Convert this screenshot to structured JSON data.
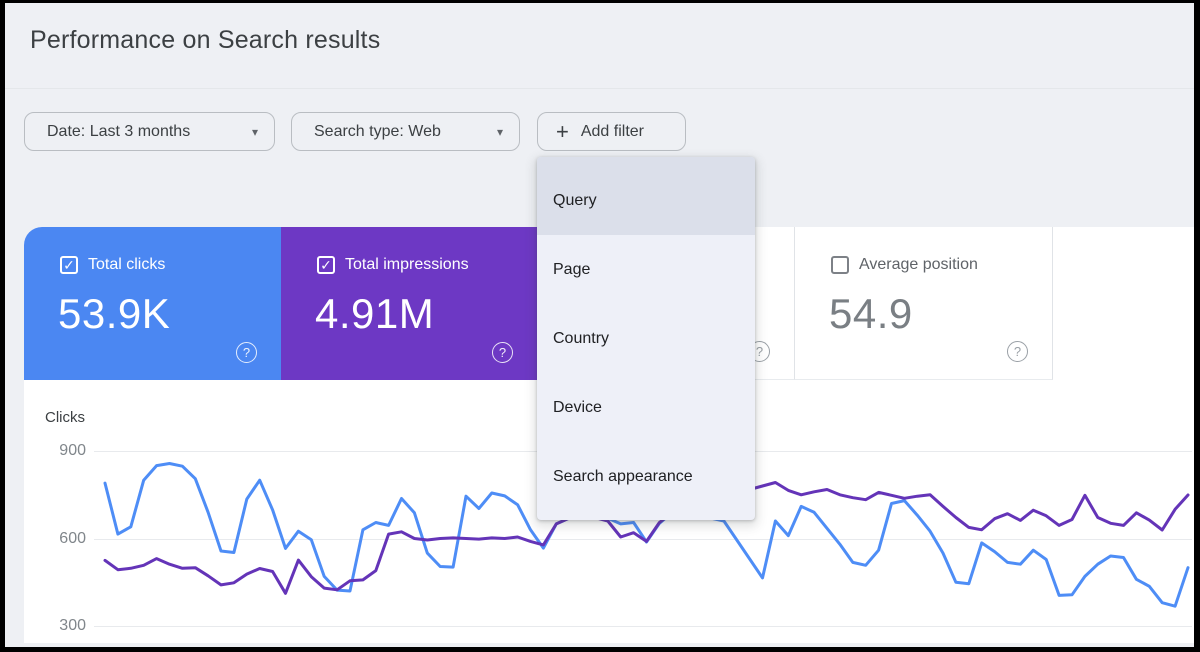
{
  "header": {
    "title": "Performance on Search results"
  },
  "filters": {
    "date": {
      "label": "Date: Last 3 months"
    },
    "search_type": {
      "label": "Search type: Web"
    },
    "add_filter": {
      "label": "Add filter"
    }
  },
  "icons": {
    "dropdown_arrow": "▾",
    "plus": "+",
    "help": "?",
    "checkbox_checked": "✓"
  },
  "add_filter_menu": {
    "items": [
      {
        "label": "Query",
        "selected": true
      },
      {
        "label": "Page",
        "selected": false
      },
      {
        "label": "Country",
        "selected": false
      },
      {
        "label": "Device",
        "selected": false
      },
      {
        "label": "Search appearance",
        "selected": false
      }
    ]
  },
  "metric_tiles": [
    {
      "id": "total-clicks",
      "label": "Total clicks",
      "value": "53.9K",
      "checked": true,
      "bg": "#4b87f2",
      "text_color": "#ffffff",
      "obscured": false
    },
    {
      "id": "total-impressions",
      "label": "Total impressions",
      "value": "4.91M",
      "checked": true,
      "bg": "#6d38c4",
      "text_color": "#ffffff",
      "obscured": false
    },
    {
      "id": "hidden-tile",
      "label": "",
      "value": "",
      "checked": false,
      "bg": "#ffffff",
      "text_color": "#5f6368",
      "obscured": true
    },
    {
      "id": "average-position",
      "label": "Average position",
      "value": "54.9",
      "checked": false,
      "bg": "#ffffff",
      "text_color": "#5f6368",
      "value_color": "#7a7f84",
      "obscured": false
    }
  ],
  "chart_data": {
    "type": "line",
    "ylabel": "Clicks",
    "y_ticks": [
      900,
      600,
      300
    ],
    "ylim": [
      300,
      900
    ],
    "x_unit": "daily points over last 3 months",
    "grid": "horizontal",
    "legend": "none (series colors match Total clicks / Total impressions tiles)",
    "series": [
      {
        "name": "Total clicks",
        "color": "#4e8df6",
        "values": [
          790,
          615,
          640,
          800,
          850,
          857,
          848,
          805,
          690,
          557,
          552,
          735,
          800,
          698,
          566,
          625,
          596,
          470,
          423,
          420,
          630,
          655,
          645,
          737,
          688,
          550,
          504,
          502,
          745,
          703,
          756,
          746,
          716,
          630,
          567,
          650,
          670,
          690,
          685,
          670,
          650,
          655,
          588,
          652,
          690,
          695,
          685,
          670,
          660,
          595,
          530,
          465,
          660,
          610,
          710,
          690,
          635,
          580,
          518,
          508,
          560,
          720,
          730,
          680,
          625,
          550,
          450,
          445,
          585,
          555,
          518,
          512,
          560,
          528,
          405,
          407,
          470,
          512,
          540,
          535,
          460,
          436,
          380,
          368,
          500
        ]
      },
      {
        "name": "Total impressions (plotted on clicks axis scale)",
        "color": "#6434b8",
        "values": [
          525,
          493,
          498,
          508,
          531,
          512,
          498,
          500,
          472,
          441,
          448,
          478,
          497,
          487,
          412,
          526,
          469,
          430,
          424,
          455,
          458,
          490,
          615,
          623,
          600,
          595,
          600,
          602,
          600,
          598,
          602,
          600,
          605,
          590,
          578,
          650,
          670,
          680,
          672,
          660,
          605,
          620,
          590,
          655,
          690,
          710,
          725,
          735,
          750,
          762,
          768,
          780,
          792,
          765,
          750,
          760,
          768,
          750,
          740,
          733,
          758,
          748,
          738,
          745,
          750,
          710,
          672,
          638,
          630,
          668,
          685,
          662,
          697,
          678,
          645,
          665,
          748,
          672,
          652,
          645,
          688,
          663,
          629,
          700,
          749
        ]
      }
    ]
  }
}
